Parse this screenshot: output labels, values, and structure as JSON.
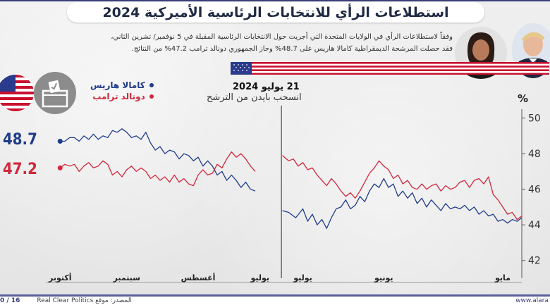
{
  "header": {
    "title": "استطلاعات الرأي للانتخابات الرئاسية الأميركية 2024"
  },
  "intro": {
    "line1": "وفقاً لاستطلاعات الرأي في الولايات المتحدة التي أجريت حول الانتخابات الرئاسية المقبلة في 5 نوفمبر/ تشرين الثاني،",
    "line2": "فقد حصلت المرشحة الديمقراطية كامالا هاريس على 48.7% وحاز الجمهوري دونالد ترامب 47.2% من النتائج."
  },
  "legend": {
    "harris": "كامالا هاريس",
    "trump": "دونالد ترامب"
  },
  "annotation": {
    "date": "21 يوليو 2024",
    "text": "انسحب بايدن من الترشح"
  },
  "final_values": {
    "harris": "48.7",
    "trump": "47.2"
  },
  "footer": {
    "page": "0 / 16",
    "source": "المصدر: موقع Real Clear Politics",
    "site": "www.alara"
  },
  "colors": {
    "harris": "#1f3c88",
    "trump": "#d0283c",
    "axis": "#333333"
  },
  "chart_data": {
    "type": "line",
    "ylabel": "%",
    "ylim": [
      41,
      50.5
    ],
    "yticks": [
      42,
      44,
      46,
      48,
      50
    ],
    "x_direction": "right-to-left",
    "xlim": [
      0,
      100
    ],
    "month_ticks": [
      {
        "label": "مايو",
        "x": 4
      },
      {
        "label": "يونيو",
        "x": 29
      },
      {
        "label": "يوليو",
        "x": 46
      },
      {
        "label": "يوليو",
        "x": 55
      },
      {
        "label": "أغسطس",
        "x": 68
      },
      {
        "label": "سبتمبر",
        "x": 83
      },
      {
        "label": "أكتوبر",
        "x": 97
      }
    ],
    "event_x": 50.5,
    "series": [
      {
        "name": "كامالا هاريس",
        "key": "harris",
        "segments": [
          [
            [
              50.3,
              44.8
            ],
            [
              49,
              44.7
            ],
            [
              47.5,
              44.4
            ],
            [
              46,
              44.9
            ],
            [
              45,
              44.2
            ],
            [
              44,
              44.6
            ],
            [
              43,
              44.0
            ],
            [
              42,
              44.3
            ],
            [
              41,
              43.8
            ],
            [
              40,
              44.4
            ],
            [
              39,
              44.9
            ],
            [
              38,
              45.0
            ],
            [
              37,
              45.4
            ],
            [
              36,
              44.9
            ],
            [
              35,
              45.1
            ],
            [
              34,
              45.6
            ],
            [
              33,
              45.3
            ],
            [
              32,
              45.9
            ],
            [
              31,
              46.3
            ],
            [
              30,
              46.1
            ],
            [
              29,
              46.6
            ],
            [
              28,
              46.1
            ],
            [
              27,
              46.3
            ],
            [
              26,
              45.6
            ],
            [
              25,
              45.9
            ],
            [
              24,
              45.5
            ],
            [
              23,
              45.8
            ],
            [
              22,
              45.2
            ],
            [
              21,
              45.5
            ],
            [
              20,
              45.0
            ],
            [
              19,
              45.4
            ],
            [
              18,
              45.1
            ],
            [
              17,
              44.8
            ],
            [
              16,
              45.2
            ],
            [
              15,
              44.9
            ],
            [
              14,
              45.0
            ],
            [
              13,
              44.9
            ],
            [
              12,
              45.1
            ],
            [
              11,
              44.8
            ],
            [
              10,
              45.0
            ],
            [
              9,
              44.6
            ],
            [
              8,
              44.8
            ],
            [
              7,
              44.5
            ],
            [
              6,
              44.6
            ],
            [
              5,
              44.2
            ],
            [
              4,
              44.3
            ],
            [
              3,
              44.1
            ],
            [
              2,
              44.3
            ],
            [
              1,
              44.2
            ],
            [
              0,
              44.4
            ]
          ],
          [
            [
              56,
              45.9
            ],
            [
              57,
              46.0
            ],
            [
              58,
              46.4
            ],
            [
              59,
              46.1
            ],
            [
              60,
              46.5
            ],
            [
              61,
              46.8
            ],
            [
              62,
              46.5
            ],
            [
              63,
              47.0
            ],
            [
              64,
              46.8
            ],
            [
              65,
              47.3
            ],
            [
              66,
              47.6
            ],
            [
              67,
              47.3
            ],
            [
              68,
              47.8
            ],
            [
              69,
              47.6
            ],
            [
              70,
              47.9
            ],
            [
              71,
              48.0
            ],
            [
              72,
              47.7
            ],
            [
              73,
              48.1
            ],
            [
              74,
              48.2
            ],
            [
              75,
              48.0
            ],
            [
              76,
              48.4
            ],
            [
              77,
              48.2
            ],
            [
              78,
              48.6
            ],
            [
              79,
              49.2
            ],
            [
              80,
              48.8
            ],
            [
              81,
              49.0
            ],
            [
              82,
              48.9
            ],
            [
              83,
              49.2
            ],
            [
              84,
              49.4
            ],
            [
              85,
              49.2
            ],
            [
              86,
              49.3
            ],
            [
              87,
              48.9
            ],
            [
              88,
              49.0
            ],
            [
              89,
              48.8
            ],
            [
              90,
              49.1
            ],
            [
              91,
              48.8
            ],
            [
              92,
              49.0
            ],
            [
              93,
              48.7
            ],
            [
              94,
              48.9
            ],
            [
              95,
              48.9
            ],
            [
              96,
              48.7
            ],
            [
              97,
              48.7
            ]
          ]
        ]
      },
      {
        "name": "دونالد ترامب",
        "key": "trump",
        "segments": [
          [
            [
              50.3,
              47.9
            ],
            [
              49,
              47.6
            ],
            [
              48,
              47.7
            ],
            [
              47,
              47.3
            ],
            [
              46,
              47.5
            ],
            [
              45,
              47.1
            ],
            [
              44,
              47.2
            ],
            [
              43,
              46.8
            ],
            [
              42,
              46.5
            ],
            [
              41,
              46.2
            ],
            [
              40,
              46.6
            ],
            [
              39,
              46.3
            ],
            [
              38,
              45.9
            ],
            [
              37,
              45.6
            ],
            [
              36,
              45.8
            ],
            [
              35,
              45.5
            ],
            [
              34,
              45.9
            ],
            [
              33,
              46.4
            ],
            [
              32,
              46.9
            ],
            [
              31,
              47.2
            ],
            [
              30,
              47.6
            ],
            [
              29,
              47.3
            ],
            [
              28,
              47.1
            ],
            [
              27,
              46.6
            ],
            [
              26,
              46.8
            ],
            [
              25,
              46.3
            ],
            [
              24,
              46.5
            ],
            [
              23,
              46.1
            ],
            [
              22,
              46.0
            ],
            [
              21,
              46.3
            ],
            [
              20,
              46.0
            ],
            [
              19,
              46.2
            ],
            [
              18,
              46.3
            ],
            [
              17,
              45.9
            ],
            [
              16,
              46.2
            ],
            [
              15,
              46.0
            ],
            [
              14,
              46.1
            ],
            [
              13,
              46.4
            ],
            [
              12,
              46.5
            ],
            [
              11,
              46.1
            ],
            [
              10,
              46.5
            ],
            [
              9,
              46.6
            ],
            [
              8,
              46.3
            ],
            [
              7,
              46.7
            ],
            [
              6,
              45.7
            ],
            [
              5,
              45.4
            ],
            [
              4,
              45.0
            ],
            [
              3,
              44.6
            ],
            [
              2,
              44.7
            ],
            [
              1,
              44.3
            ],
            [
              0,
              44.5
            ]
          ],
          [
            [
              56,
              47.0
            ],
            [
              57,
              47.3
            ],
            [
              58,
              47.7
            ],
            [
              59,
              48.0
            ],
            [
              60,
              47.8
            ],
            [
              61,
              48.1
            ],
            [
              62,
              47.7
            ],
            [
              63,
              47.2
            ],
            [
              64,
              47.4
            ],
            [
              65,
              46.9
            ],
            [
              66,
              46.8
            ],
            [
              67,
              47.1
            ],
            [
              68,
              46.8
            ],
            [
              69,
              46.2
            ],
            [
              70,
              46.3
            ],
            [
              71,
              46.6
            ],
            [
              72,
              46.4
            ],
            [
              73,
              46.8
            ],
            [
              74,
              46.4
            ],
            [
              75,
              46.7
            ],
            [
              76,
              46.5
            ],
            [
              77,
              46.8
            ],
            [
              78,
              46.6
            ],
            [
              79,
              47.0
            ],
            [
              80,
              47.2
            ],
            [
              81,
              47.0
            ],
            [
              82,
              47.3
            ],
            [
              83,
              47.1
            ],
            [
              84,
              46.7
            ],
            [
              85,
              47.0
            ],
            [
              86,
              46.8
            ],
            [
              87,
              47.4
            ],
            [
              88,
              47.6
            ],
            [
              89,
              47.3
            ],
            [
              90,
              47.2
            ],
            [
              91,
              47.5
            ],
            [
              92,
              47.3
            ],
            [
              93,
              47.0
            ],
            [
              94,
              47.4
            ],
            [
              95,
              47.3
            ],
            [
              96,
              47.4
            ],
            [
              97,
              47.2
            ]
          ]
        ]
      }
    ]
  }
}
